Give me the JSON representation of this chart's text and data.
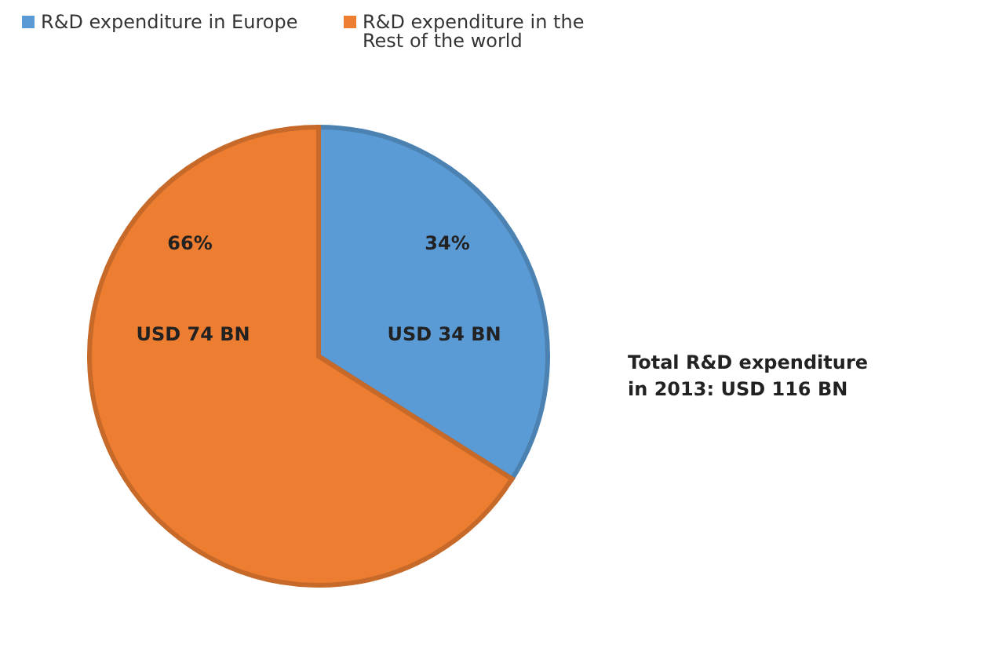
{
  "chart_data": {
    "type": "pie",
    "categories": [
      "R&D expenditure in Europe",
      "R&D expenditure in the Rest of the world"
    ],
    "values": [
      34,
      66
    ],
    "colors": [
      "#5b9bd5",
      "#ed7d31"
    ],
    "value_labels": [
      "34%",
      "66%"
    ],
    "annotations": [
      {
        "text": "USD 34 BN",
        "x": "R&D expenditure in Europe"
      },
      {
        "text": "USD 74 BN",
        "x": "R&D expenditure in the Rest of the world"
      },
      "Total R&D expenditure in 2013: USD 116 BN"
    ],
    "legend": "top left"
  }
}
